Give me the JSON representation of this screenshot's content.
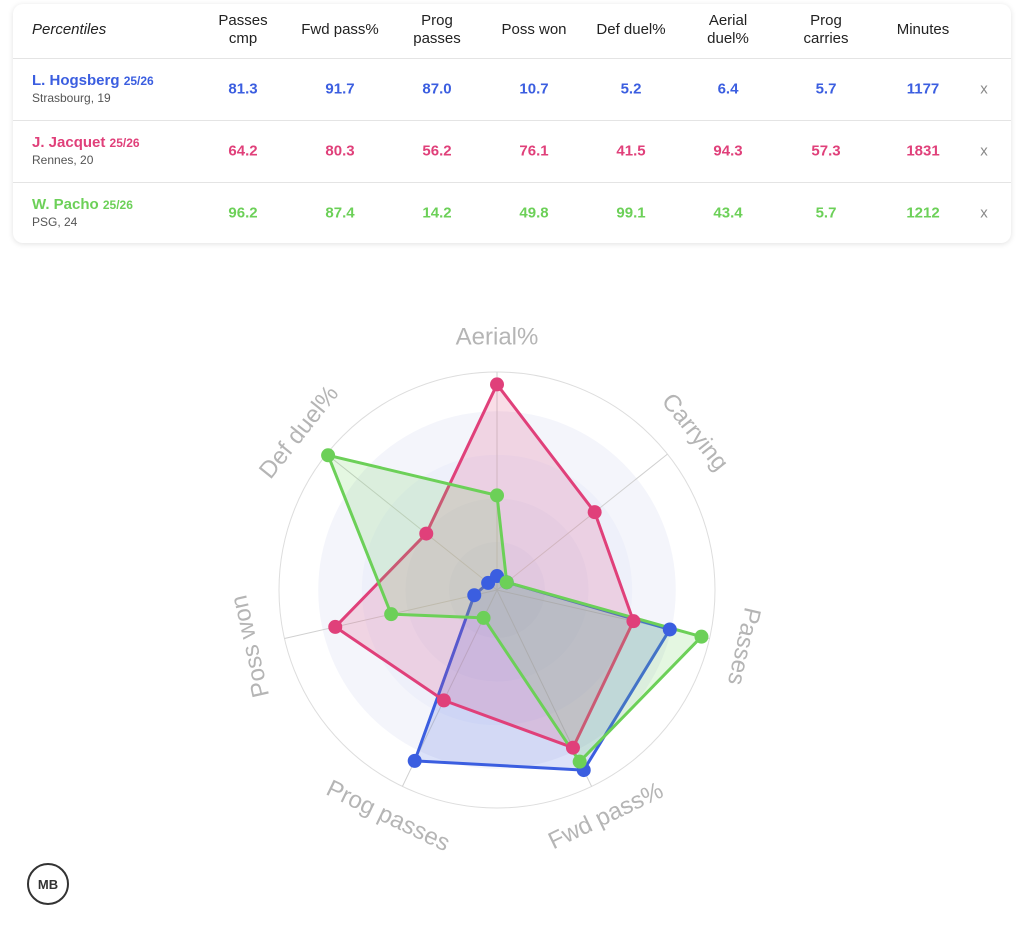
{
  "table": {
    "corner_label": "Percentiles",
    "columns": [
      "Passes cmp",
      "Fwd pass%",
      "Prog passes",
      "Poss won",
      "Def duel%",
      "Aerial duel%",
      "Prog carries",
      "Minutes"
    ],
    "rows": [
      {
        "season": "25/26",
        "detail": "Strasbourg, 19",
        "minutes": "1177",
        "remove": "x"
      },
      {
        "season": "25/26",
        "detail": "Rennes, 20",
        "minutes": "1831",
        "remove": "x"
      },
      {
        "season": "25/26",
        "detail": "PSG, 24",
        "minutes": "1212",
        "remove": "x"
      }
    ]
  },
  "chart_data": {
    "type": "radar",
    "categories": [
      "Passes",
      "Fwd pass%",
      "Prog passes",
      "Poss won",
      "Def duel%",
      "Aerial%",
      "Carrying"
    ],
    "ylim": [
      0,
      100
    ],
    "series": [
      {
        "name": "L. Hogsberg",
        "color": "#3b5ee0",
        "values": [
          81.3,
          91.7,
          87.0,
          10.7,
          5.2,
          6.4,
          5.7
        ],
        "value_labels": [
          "81.3",
          "91.7",
          "87.0",
          "10.7",
          "5.2",
          "6.4",
          "5.7"
        ]
      },
      {
        "name": "J. Jacquet",
        "color": "#e0407a",
        "values": [
          64.2,
          80.3,
          56.2,
          76.1,
          41.5,
          94.3,
          57.3
        ],
        "value_labels": [
          "64.2",
          "80.3",
          "56.2",
          "76.1",
          "41.5",
          "94.3",
          "57.3"
        ]
      },
      {
        "name": "W. Pacho",
        "color": "#6cd058",
        "values": [
          96.2,
          87.4,
          14.2,
          49.8,
          99.1,
          43.4,
          5.7
        ],
        "value_labels": [
          "96.2",
          "87.4",
          "14.2",
          "49.8",
          "99.1",
          "43.4",
          "5.7"
        ]
      }
    ]
  },
  "logo": "MB"
}
